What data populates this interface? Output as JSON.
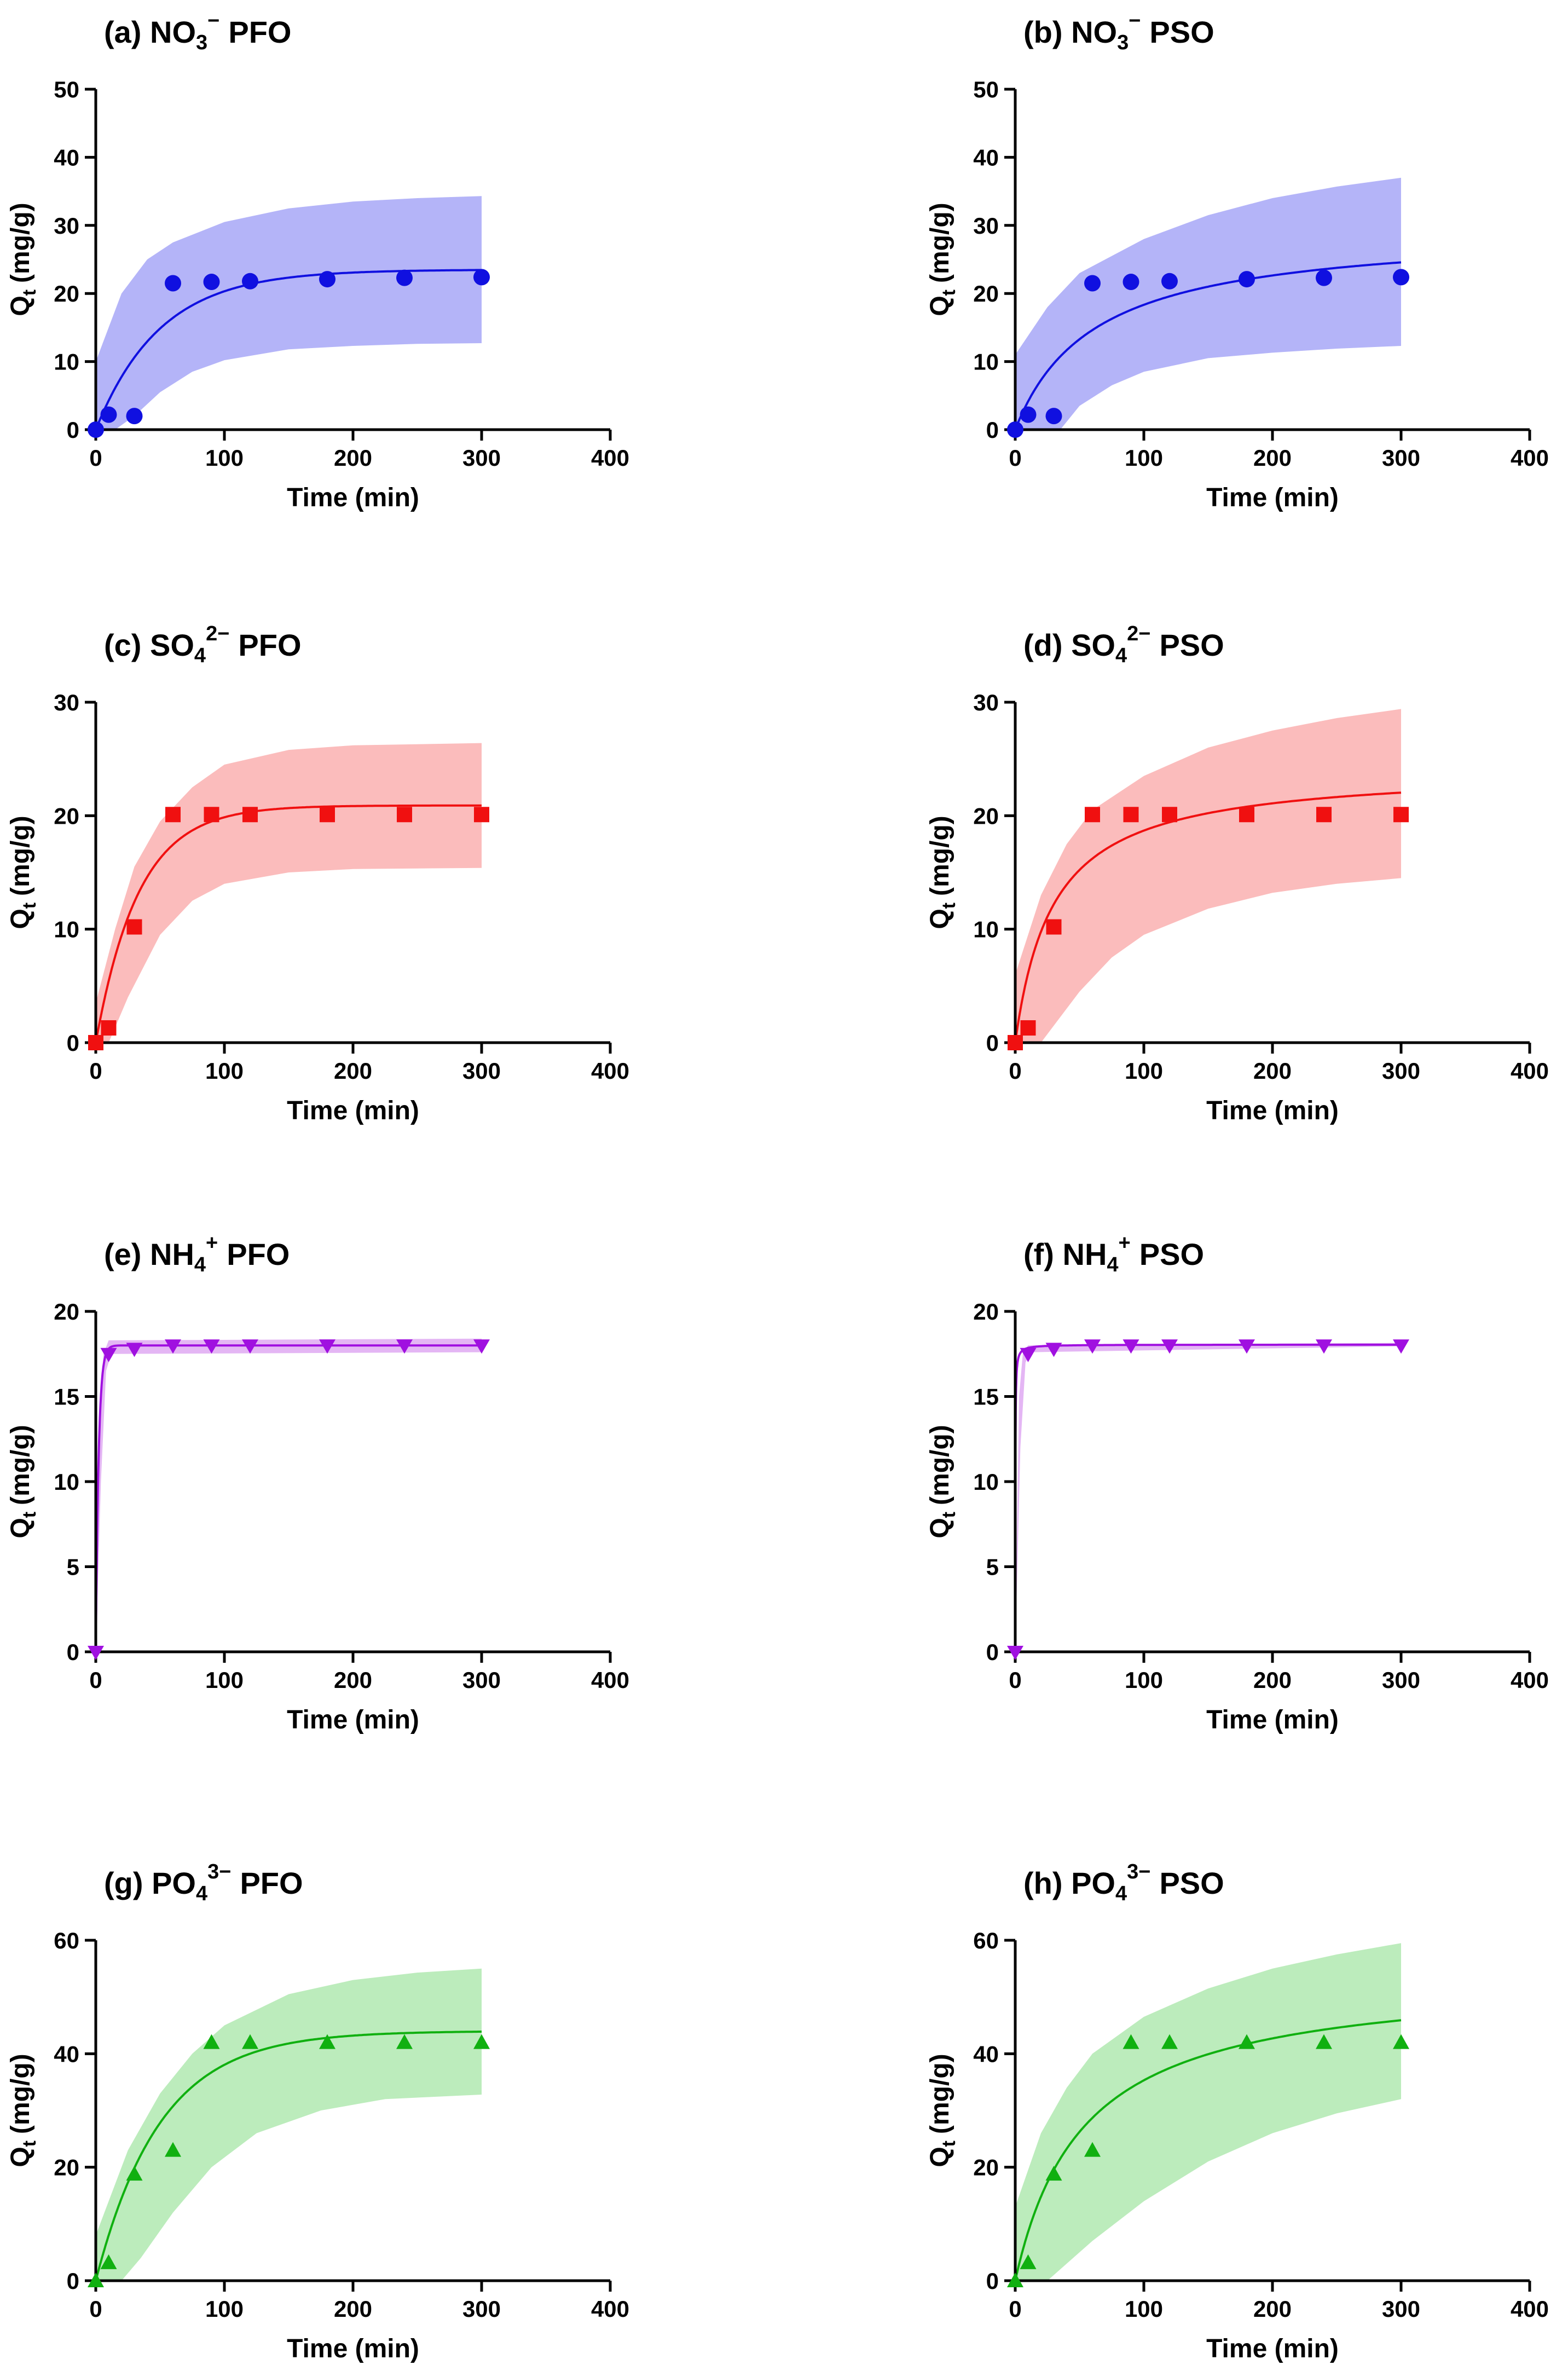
{
  "figure": {
    "panels": [
      {
        "title": "(a) NO3− PFO",
        "title_main": "(a) NO",
        "title_sub": "3",
        "title_sup": "−",
        "title_tail": "PFO"
      },
      {
        "title": "(b) NO3− PSO",
        "title_main": "(b) NO",
        "title_sub": "3",
        "title_sup": "−",
        "title_tail": "PSO"
      },
      {
        "title": "(c) SO42− PFO",
        "title_main": "(c) SO",
        "title_sub": "4",
        "title_sup": "2−",
        "title_tail": "PFO"
      },
      {
        "title": "(d) SO42− PSO",
        "title_main": "(d) SO",
        "title_sub": "4",
        "title_sup": "2−",
        "title_tail": "PSO"
      },
      {
        "title": "(e) NH4+ PFO",
        "title_main": "(e) NH",
        "title_sub": "4",
        "title_sup": "+",
        "title_tail": "PFO"
      },
      {
        "title": "(f) NH4+ PSO",
        "title_main": "(f) NH",
        "title_sub": "4",
        "title_sup": "+",
        "title_tail": "PSO"
      },
      {
        "title": "(g) PO43− PFO",
        "title_main": "(g) PO",
        "title_sub": "4",
        "title_sup": "3−",
        "title_tail": "PFO"
      },
      {
        "title": "(h) PO43− PSO",
        "title_main": "(h) PO",
        "title_sub": "4",
        "title_sup": "3−",
        "title_tail": "PSO"
      }
    ]
  },
  "chart_data": [
    {
      "id": "a",
      "type": "scatter",
      "model": "PFO",
      "marker": "circle",
      "color": "#1010e0",
      "band_color": "#b4b4f8",
      "xlabel": "Time (min)",
      "ylabel_main": "Q",
      "ylabel_sub": "t",
      "ylabel_unit": "(mg/g)",
      "xlim": [
        0,
        400
      ],
      "ylim": [
        0,
        50
      ],
      "xticks": [
        0,
        100,
        200,
        300,
        400
      ],
      "yticks": [
        0,
        10,
        20,
        30,
        40,
        50
      ],
      "x": [
        0,
        10,
        30,
        60,
        90,
        120,
        180,
        240,
        300
      ],
      "y": [
        0,
        2.2,
        2.0,
        21.5,
        21.7,
        21.8,
        22.1,
        22.3,
        22.4
      ],
      "fit": {
        "qe": 23.5,
        "k": 0.02,
        "range": [
          0,
          300
        ]
      },
      "band": {
        "upper": [
          [
            0,
            10
          ],
          [
            20,
            20
          ],
          [
            40,
            25
          ],
          [
            60,
            27.5
          ],
          [
            100,
            30.5
          ],
          [
            150,
            32.5
          ],
          [
            200,
            33.5
          ],
          [
            250,
            34
          ],
          [
            300,
            34.3
          ]
        ],
        "lower": [
          [
            0,
            0
          ],
          [
            15,
            0
          ],
          [
            30,
            2
          ],
          [
            50,
            5.5
          ],
          [
            75,
            8.5
          ],
          [
            100,
            10.2
          ],
          [
            150,
            11.8
          ],
          [
            200,
            12.3
          ],
          [
            250,
            12.6
          ],
          [
            300,
            12.7
          ]
        ]
      }
    },
    {
      "id": "b",
      "type": "scatter",
      "model": "PSO",
      "marker": "circle",
      "color": "#1010e0",
      "band_color": "#b4b4f8",
      "xlabel": "Time (min)",
      "ylabel_main": "Q",
      "ylabel_sub": "t",
      "ylabel_unit": "(mg/g)",
      "xlim": [
        0,
        400
      ],
      "ylim": [
        0,
        50
      ],
      "xticks": [
        0,
        100,
        200,
        300,
        400
      ],
      "yticks": [
        0,
        10,
        20,
        30,
        40,
        50
      ],
      "x": [
        0,
        10,
        30,
        60,
        90,
        120,
        180,
        240,
        300
      ],
      "y": [
        0,
        2.2,
        2.0,
        21.5,
        21.7,
        21.8,
        22.1,
        22.3,
        22.4
      ],
      "fit": {
        "qe": 29.6,
        "k": 0.00055,
        "range": [
          0,
          300
        ]
      },
      "band": {
        "upper": [
          [
            0,
            11
          ],
          [
            25,
            18
          ],
          [
            50,
            23
          ],
          [
            75,
            25.5
          ],
          [
            100,
            28
          ],
          [
            150,
            31.5
          ],
          [
            200,
            34
          ],
          [
            250,
            35.7
          ],
          [
            300,
            37
          ]
        ],
        "lower": [
          [
            0,
            0
          ],
          [
            35,
            0
          ],
          [
            50,
            3.5
          ],
          [
            75,
            6.5
          ],
          [
            100,
            8.5
          ],
          [
            150,
            10.5
          ],
          [
            200,
            11.3
          ],
          [
            250,
            11.9
          ],
          [
            300,
            12.3
          ]
        ]
      }
    },
    {
      "id": "c",
      "type": "scatter",
      "model": "PFO",
      "marker": "square",
      "color": "#f01010",
      "band_color": "#fbbcbc",
      "xlabel": "Time (min)",
      "ylabel_main": "Q",
      "ylabel_sub": "t",
      "ylabel_unit": "(mg/g)",
      "xlim": [
        0,
        400
      ],
      "ylim": [
        0,
        30
      ],
      "xticks": [
        0,
        100,
        200,
        300,
        400
      ],
      "yticks": [
        0,
        10,
        20,
        30
      ],
      "x": [
        0,
        10,
        30,
        60,
        90,
        120,
        180,
        240,
        300
      ],
      "y": [
        0,
        1.3,
        10.2,
        20.1,
        20.1,
        20.1,
        20.1,
        20.1,
        20.1
      ],
      "fit": {
        "qe": 20.9,
        "k": 0.03,
        "range": [
          0,
          300
        ]
      },
      "band": {
        "upper": [
          [
            0,
            3.5
          ],
          [
            15,
            10
          ],
          [
            30,
            15.5
          ],
          [
            50,
            19.5
          ],
          [
            75,
            22.5
          ],
          [
            100,
            24.5
          ],
          [
            150,
            25.8
          ],
          [
            200,
            26.2
          ],
          [
            300,
            26.4
          ]
        ],
        "lower": [
          [
            0,
            0
          ],
          [
            10,
            0
          ],
          [
            25,
            4
          ],
          [
            50,
            9.5
          ],
          [
            75,
            12.5
          ],
          [
            100,
            14
          ],
          [
            150,
            15
          ],
          [
            200,
            15.3
          ],
          [
            300,
            15.4
          ]
        ]
      }
    },
    {
      "id": "d",
      "type": "scatter",
      "model": "PSO",
      "marker": "square",
      "color": "#f01010",
      "band_color": "#fbbcbc",
      "xlabel": "Time (min)",
      "ylabel_main": "Q",
      "ylabel_sub": "t",
      "ylabel_unit": "(mg/g)",
      "xlim": [
        0,
        400
      ],
      "ylim": [
        0,
        30
      ],
      "xticks": [
        0,
        100,
        200,
        300,
        400
      ],
      "yticks": [
        0,
        10,
        20,
        30
      ],
      "x": [
        0,
        10,
        30,
        60,
        90,
        120,
        180,
        240,
        300
      ],
      "y": [
        0,
        1.3,
        10.2,
        20.1,
        20.1,
        20.1,
        20.1,
        20.1,
        20.1
      ],
      "fit": {
        "qe": 24.2,
        "k": 0.0014,
        "range": [
          0,
          300
        ]
      },
      "band": {
        "upper": [
          [
            0,
            6
          ],
          [
            20,
            13
          ],
          [
            40,
            17.5
          ],
          [
            60,
            20.5
          ],
          [
            100,
            23.5
          ],
          [
            150,
            26
          ],
          [
            200,
            27.5
          ],
          [
            250,
            28.6
          ],
          [
            300,
            29.4
          ]
        ],
        "lower": [
          [
            0,
            0
          ],
          [
            20,
            0
          ],
          [
            30,
            1.5
          ],
          [
            50,
            4.5
          ],
          [
            75,
            7.5
          ],
          [
            100,
            9.5
          ],
          [
            150,
            11.8
          ],
          [
            200,
            13.2
          ],
          [
            250,
            14
          ],
          [
            300,
            14.5
          ]
        ]
      }
    },
    {
      "id": "e",
      "type": "scatter",
      "model": "PFO",
      "marker": "triangle-down",
      "color": "#a010e0",
      "band_color": "#e4b6f4",
      "xlabel": "Time (min)",
      "ylabel_main": "Q",
      "ylabel_sub": "t",
      "ylabel_unit": "(mg/g)",
      "xlim": [
        0,
        400
      ],
      "ylim": [
        0,
        20
      ],
      "xticks": [
        0,
        100,
        200,
        300,
        400
      ],
      "yticks": [
        0,
        5,
        10,
        15,
        20
      ],
      "x": [
        0,
        10,
        30,
        60,
        90,
        120,
        180,
        240,
        300
      ],
      "y": [
        0,
        17.5,
        17.8,
        18.0,
        18.0,
        18.0,
        18.0,
        18.0,
        18.0
      ],
      "fit": {
        "qe": 18.0,
        "k": 0.45,
        "range": [
          0,
          300
        ]
      },
      "band": {
        "upper": [
          [
            0,
            0
          ],
          [
            3,
            14
          ],
          [
            6,
            17.5
          ],
          [
            10,
            18.3
          ],
          [
            300,
            18.4
          ]
        ],
        "lower": [
          [
            0,
            0
          ],
          [
            4,
            10
          ],
          [
            8,
            16.5
          ],
          [
            12,
            17.5
          ],
          [
            300,
            17.6
          ]
        ]
      }
    },
    {
      "id": "f",
      "type": "scatter",
      "model": "PSO",
      "marker": "triangle-down",
      "color": "#a010e0",
      "band_color": "#e4b6f4",
      "xlabel": "Time (min)",
      "ylabel_main": "Q",
      "ylabel_sub": "t",
      "ylabel_unit": "(mg/g)",
      "xlim": [
        0,
        400
      ],
      "ylim": [
        0,
        20
      ],
      "xticks": [
        0,
        100,
        200,
        300,
        400
      ],
      "yticks": [
        0,
        5,
        10,
        15,
        20
      ],
      "x": [
        0,
        10,
        30,
        60,
        90,
        120,
        180,
        240,
        300
      ],
      "y": [
        0,
        17.5,
        17.8,
        18.0,
        18.0,
        18.0,
        18.0,
        18.0,
        18.0
      ],
      "fit": {
        "qe": 18.05,
        "k": 0.5,
        "range": [
          0,
          300
        ]
      },
      "band": {
        "upper": [
          [
            0,
            0
          ],
          [
            3,
            15
          ],
          [
            6,
            17.6
          ],
          [
            10,
            18.0
          ],
          [
            300,
            18.15
          ]
        ],
        "lower": [
          [
            0,
            0
          ],
          [
            4,
            12
          ],
          [
            8,
            17.0
          ],
          [
            12,
            17.6
          ],
          [
            300,
            17.95
          ]
        ]
      }
    },
    {
      "id": "g",
      "type": "scatter",
      "model": "PFO",
      "marker": "triangle-up",
      "color": "#10b010",
      "band_color": "#bcecbc",
      "xlabel": "Time (min)",
      "ylabel_main": "Q",
      "ylabel_sub": "t",
      "ylabel_unit": "(mg/g)",
      "xlim": [
        0,
        400
      ],
      "ylim": [
        0,
        60
      ],
      "xticks": [
        0,
        100,
        200,
        300,
        400
      ],
      "yticks": [
        0,
        20,
        40,
        60
      ],
      "x": [
        0,
        10,
        30,
        60,
        90,
        120,
        180,
        240,
        300
      ],
      "y": [
        0,
        3.2,
        18.8,
        23.0,
        42.0,
        42.0,
        42.0,
        42.0,
        42.0
      ],
      "fit": {
        "qe": 44.0,
        "k": 0.02,
        "range": [
          0,
          300
        ]
      },
      "band": {
        "upper": [
          [
            0,
            8
          ],
          [
            25,
            23
          ],
          [
            50,
            33
          ],
          [
            75,
            40
          ],
          [
            100,
            45
          ],
          [
            150,
            50.5
          ],
          [
            200,
            53
          ],
          [
            250,
            54.3
          ],
          [
            300,
            55
          ]
        ],
        "lower": [
          [
            0,
            0
          ],
          [
            20,
            0
          ],
          [
            35,
            4
          ],
          [
            60,
            12
          ],
          [
            90,
            20
          ],
          [
            125,
            26
          ],
          [
            175,
            30
          ],
          [
            225,
            32
          ],
          [
            300,
            32.8
          ]
        ]
      }
    },
    {
      "id": "h",
      "type": "scatter",
      "model": "PSO",
      "marker": "triangle-up",
      "color": "#10b010",
      "band_color": "#bcecbc",
      "xlabel": "Time (min)",
      "ylabel_main": "Q",
      "ylabel_sub": "t",
      "ylabel_unit": "(mg/g)",
      "xlim": [
        0,
        400
      ],
      "ylim": [
        0,
        60
      ],
      "xticks": [
        0,
        100,
        200,
        300,
        400
      ],
      "yticks": [
        0,
        20,
        40,
        60
      ],
      "x": [
        0,
        10,
        30,
        60,
        90,
        120,
        180,
        240,
        300
      ],
      "y": [
        0,
        3.2,
        18.8,
        23.0,
        42.0,
        42.0,
        42.0,
        42.0,
        42.0
      ],
      "fit": {
        "qe": 54.0,
        "k": 0.00035,
        "range": [
          0,
          300
        ]
      },
      "band": {
        "upper": [
          [
            0,
            13
          ],
          [
            20,
            26
          ],
          [
            40,
            34
          ],
          [
            60,
            40
          ],
          [
            100,
            46.5
          ],
          [
            150,
            51.5
          ],
          [
            200,
            55
          ],
          [
            250,
            57.5
          ],
          [
            300,
            59.5
          ]
        ],
        "lower": [
          [
            0,
            0
          ],
          [
            25,
            0
          ],
          [
            40,
            3
          ],
          [
            60,
            7
          ],
          [
            100,
            14
          ],
          [
            150,
            21
          ],
          [
            200,
            26
          ],
          [
            250,
            29.5
          ],
          [
            300,
            32
          ]
        ]
      }
    }
  ]
}
